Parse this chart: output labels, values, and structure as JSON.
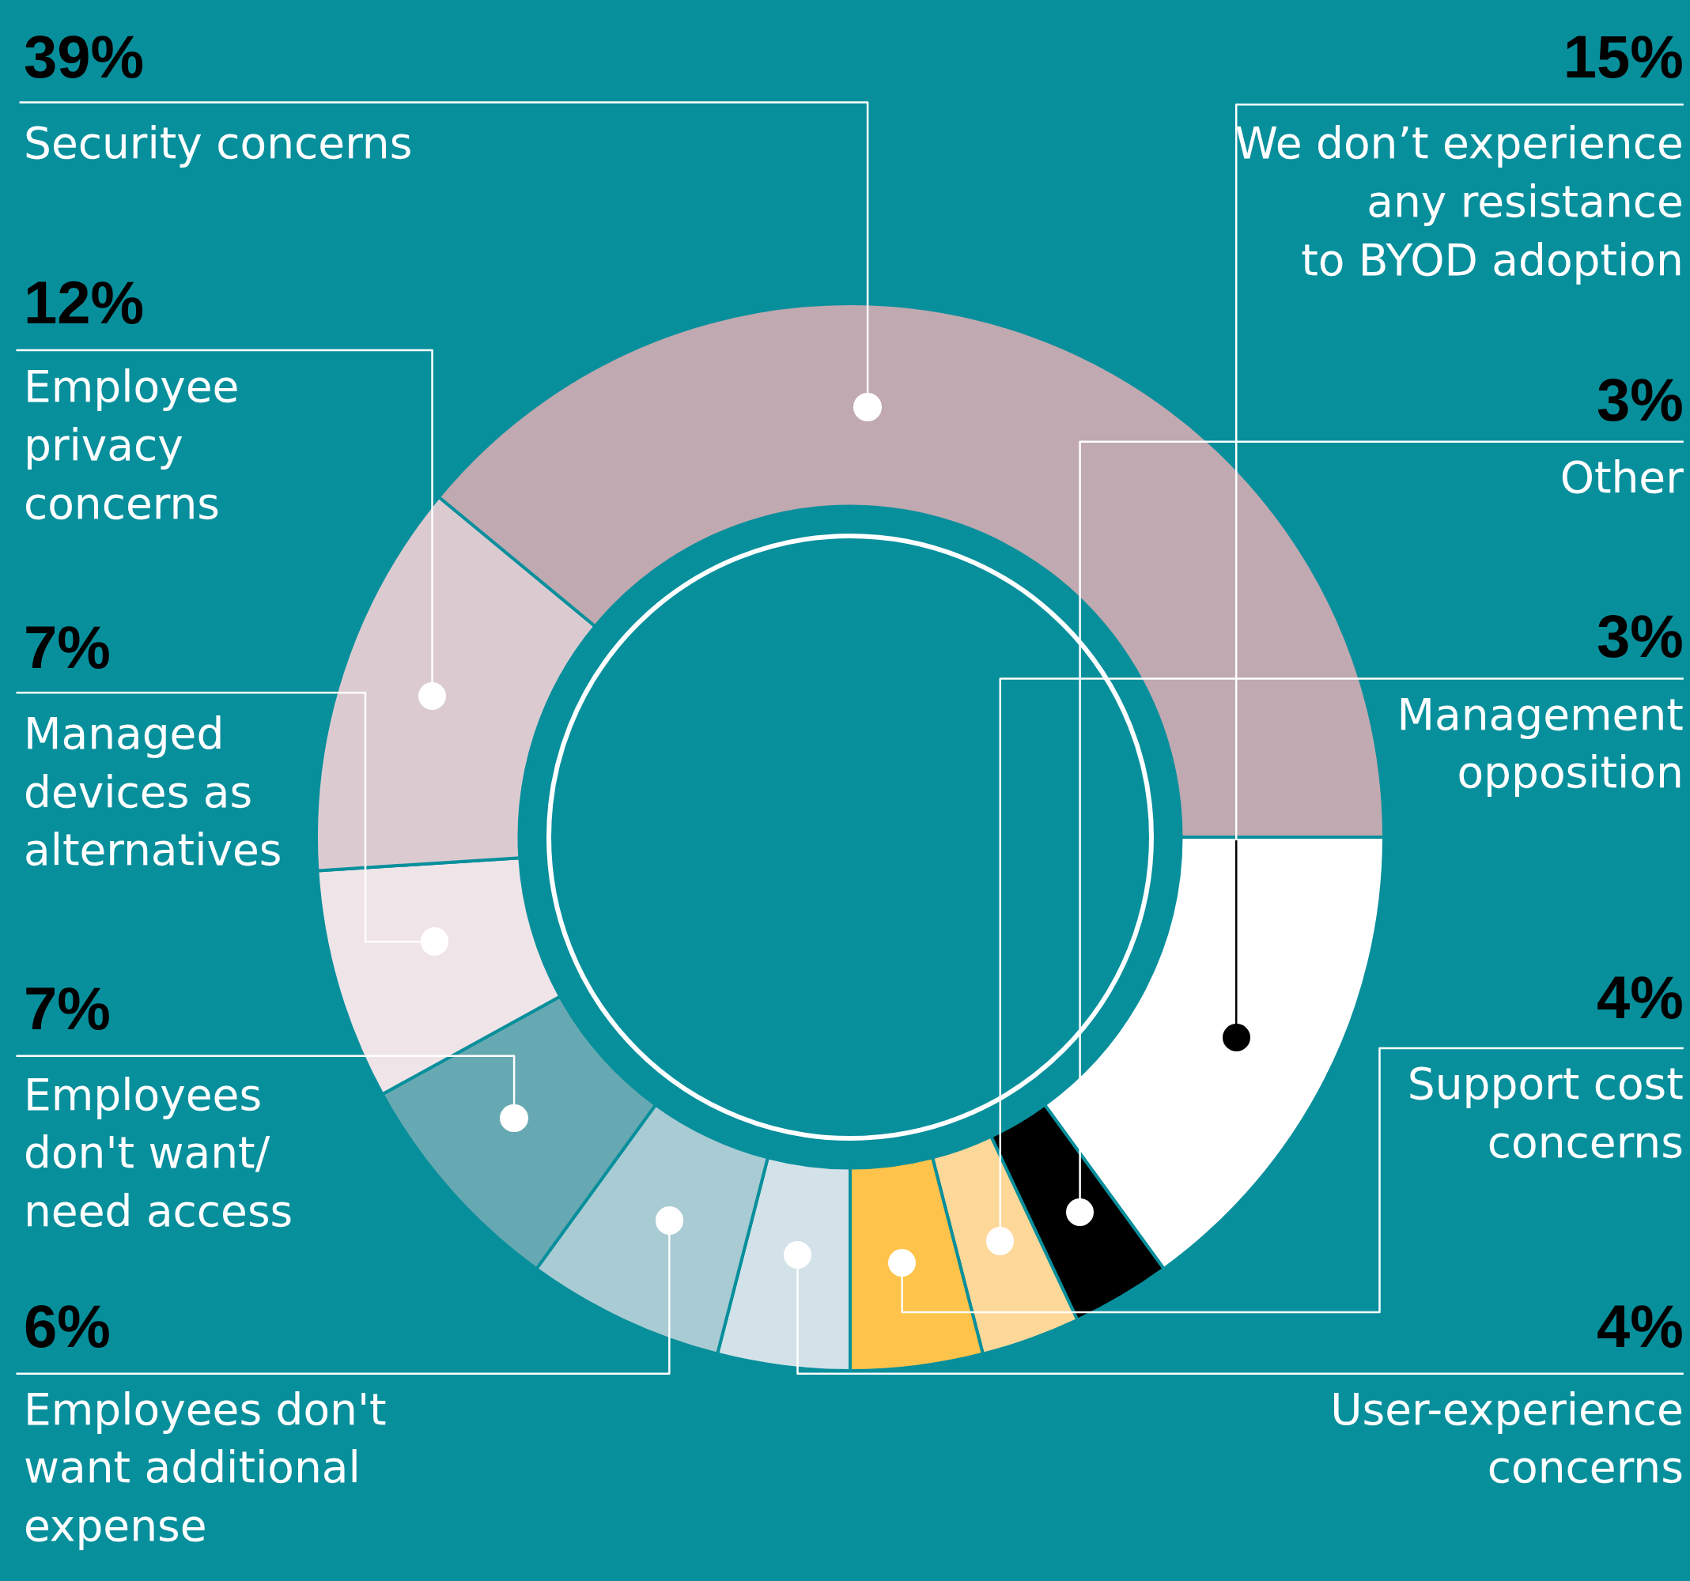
{
  "chart_data": {
    "type": "donut",
    "categories": [
      "We don’t experience any resistance to BYOD adoption",
      "Other",
      "Management opposition",
      "Support cost concerns",
      "User-experience concerns",
      "Employees don't want additional expense",
      "Employees don't want/ need access",
      "Managed devices as alternatives",
      "Employee privacy concerns",
      "Security concerns"
    ],
    "values": [
      15,
      3,
      3,
      4,
      4,
      6,
      7,
      7,
      12,
      39
    ],
    "value_labels": [
      "15%",
      "3%",
      "3%",
      "4%",
      "4%",
      "6%",
      "7%",
      "7%",
      "12%",
      "39%"
    ],
    "colors": [
      "#ffffff",
      "#000000",
      "#fdd898",
      "#fec34a",
      "#d3e2e8",
      "#a9cbd3",
      "#67a9b2",
      "#efe4e8",
      "#dbcbd1",
      "#c0a9b0"
    ],
    "legend": false
  }
}
